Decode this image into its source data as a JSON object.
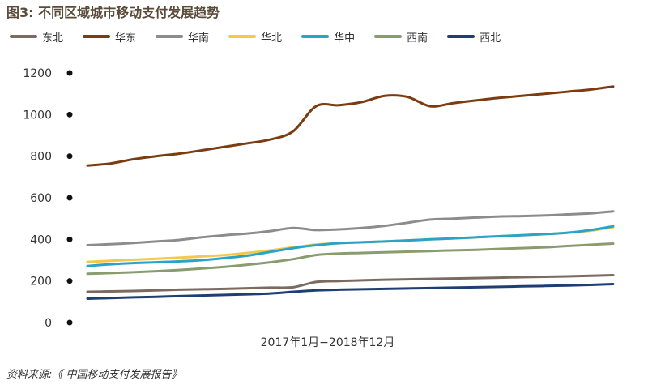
{
  "title": "图3: 不同区域城市移动支付发展趋势",
  "source": "资料来源:《 中国移动支付发展报告》",
  "chart_data": {
    "type": "line",
    "title": "图3: 不同区域城市移动支付发展趋势",
    "xlabel": "2017年1月−2018年12月",
    "ylabel": "",
    "ylim": [
      0,
      1200
    ],
    "yticks": [
      0,
      200,
      400,
      600,
      800,
      1000,
      1200
    ],
    "grid": false,
    "legend_position": "top-left",
    "x": [
      0,
      1,
      2,
      3,
      4,
      5,
      6,
      7,
      8,
      9,
      10,
      11,
      12,
      13,
      14,
      15,
      16,
      17,
      18,
      19,
      20,
      21,
      22,
      23
    ],
    "series": [
      {
        "name": "东北",
        "color": "#7b6a5f",
        "values": [
          148,
          150,
          152,
          155,
          158,
          160,
          162,
          165,
          168,
          170,
          195,
          200,
          203,
          206,
          208,
          210,
          212,
          214,
          216,
          218,
          220,
          222,
          225,
          228
        ]
      },
      {
        "name": "华东",
        "color": "#7a3c10",
        "values": [
          755,
          765,
          785,
          800,
          812,
          828,
          845,
          862,
          880,
          920,
          1040,
          1045,
          1060,
          1090,
          1085,
          1040,
          1055,
          1068,
          1080,
          1090,
          1100,
          1110,
          1120,
          1135
        ]
      },
      {
        "name": "华南",
        "color": "#8c8c8c",
        "values": [
          372,
          377,
          383,
          390,
          397,
          410,
          420,
          428,
          440,
          455,
          445,
          448,
          455,
          465,
          480,
          495,
          500,
          505,
          510,
          512,
          515,
          520,
          525,
          535
        ]
      },
      {
        "name": "华北",
        "color": "#f2c94c",
        "values": [
          292,
          297,
          302,
          307,
          312,
          318,
          325,
          335,
          347,
          362,
          375,
          382,
          386,
          390,
          395,
          400,
          405,
          410,
          415,
          420,
          425,
          432,
          442,
          458
        ]
      },
      {
        "name": "华中",
        "color": "#2aa3c9",
        "values": [
          272,
          280,
          286,
          290,
          294,
          300,
          310,
          322,
          340,
          358,
          372,
          382,
          386,
          390,
          395,
          400,
          405,
          410,
          415,
          420,
          425,
          432,
          445,
          463
        ]
      },
      {
        "name": "西南",
        "color": "#8a9c6e",
        "values": [
          235,
          238,
          242,
          247,
          253,
          260,
          268,
          278,
          290,
          305,
          325,
          332,
          335,
          338,
          341,
          344,
          347,
          350,
          354,
          358,
          362,
          368,
          374,
          380
        ]
      },
      {
        "name": "西北",
        "color": "#1f3f73",
        "values": [
          115,
          118,
          121,
          124,
          127,
          130,
          133,
          136,
          140,
          148,
          155,
          158,
          160,
          162,
          164,
          166,
          168,
          170,
          172,
          174,
          176,
          178,
          181,
          185
        ]
      }
    ]
  }
}
